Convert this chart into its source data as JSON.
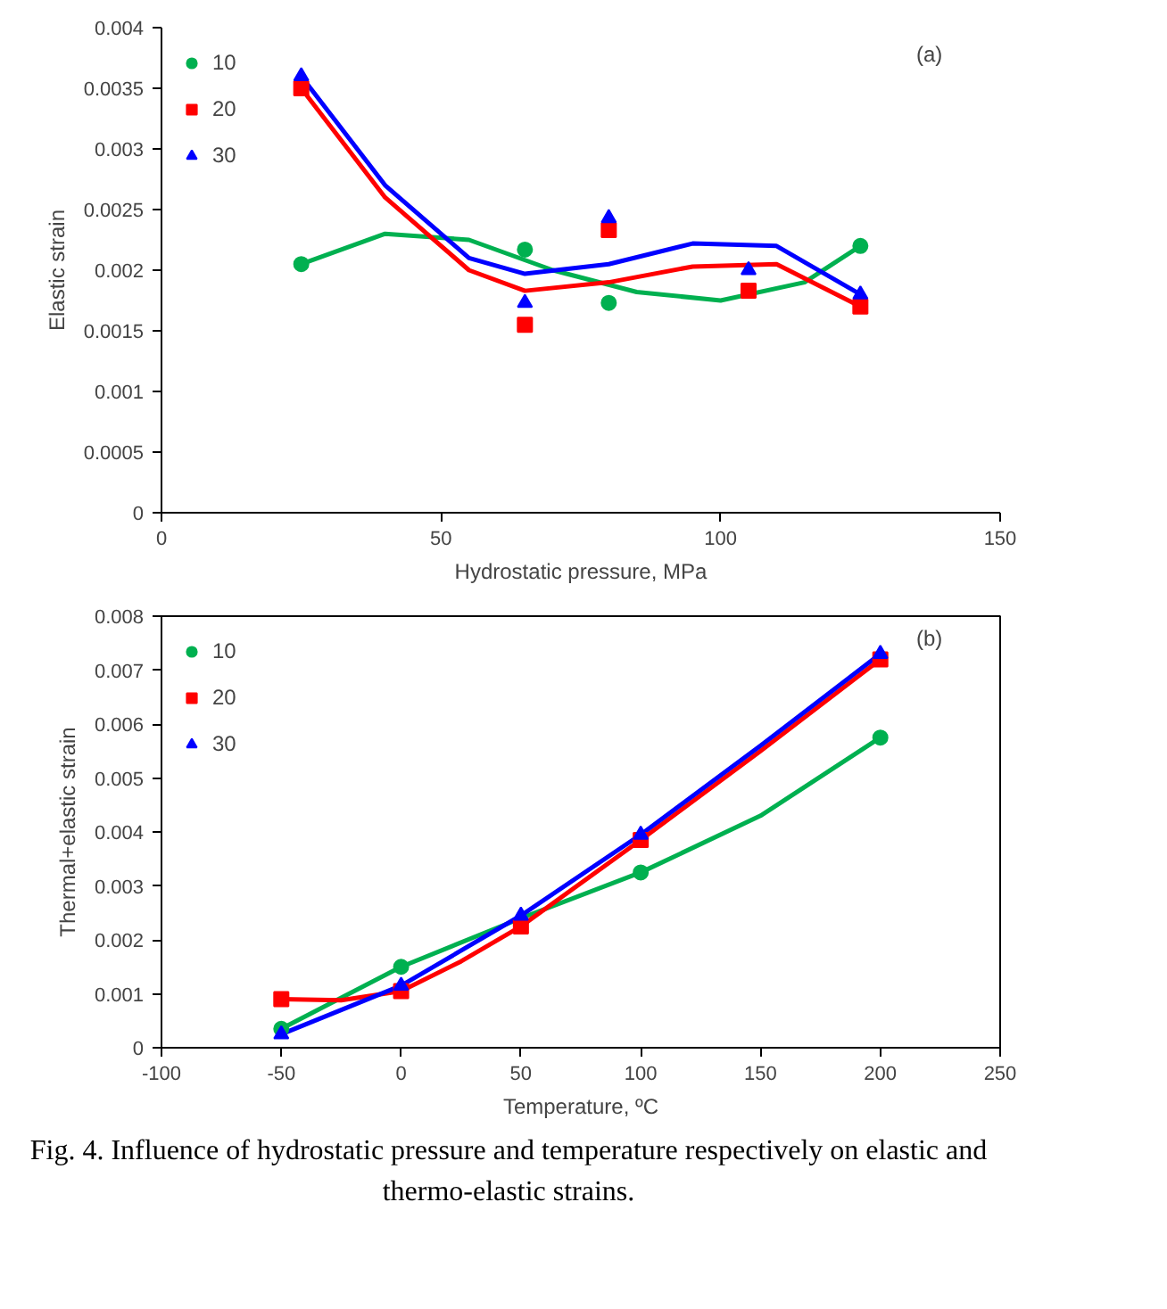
{
  "chart_data": [
    {
      "type": "scatter",
      "xlabel": "Hydrostatic pressure, MPa",
      "ylabel": "Elastic strain",
      "annotations": [
        "(a)"
      ],
      "xlim": [
        0,
        150
      ],
      "xticks": [
        0,
        50,
        100,
        150
      ],
      "ylim": [
        0,
        0.004
      ],
      "yticks": [
        0,
        0.0005,
        0.001,
        0.0015,
        0.002,
        0.0025,
        0.003,
        0.0035,
        0.004
      ],
      "grid": false,
      "legend": "top left",
      "series": [
        {
          "name": "10",
          "color": "#00b050",
          "marker": "circle",
          "x": [
            25,
            65,
            80,
            105,
            125
          ],
          "values": [
            0.00205,
            0.00217,
            0.00173,
            null,
            0.0022
          ]
        },
        {
          "name": "20",
          "color": "#ff0000",
          "marker": "square",
          "x": [
            25,
            65,
            80,
            105,
            125
          ],
          "values": [
            0.0035,
            0.00155,
            0.00233,
            0.00183,
            0.0017
          ]
        },
        {
          "name": "30",
          "color": "#0000ff",
          "marker": "triangle",
          "x": [
            25,
            65,
            80,
            105,
            125
          ],
          "values": [
            0.0036,
            0.00173,
            0.00243,
            0.002,
            0.0018
          ]
        },
        {
          "type": "line",
          "color": "#00b050",
          "marker": "none",
          "x": [
            25,
            40,
            55,
            70,
            85,
            100,
            115,
            125
          ],
          "values": [
            0.00205,
            0.0023,
            0.00225,
            0.002,
            0.00182,
            0.00175,
            0.0019,
            0.0022
          ]
        },
        {
          "type": "line",
          "color": "#ff0000",
          "marker": "none",
          "x": [
            25,
            40,
            55,
            65,
            80,
            95,
            110,
            125
          ],
          "values": [
            0.0035,
            0.0026,
            0.002,
            0.00183,
            0.0019,
            0.00203,
            0.00205,
            0.0017
          ]
        },
        {
          "type": "line",
          "color": "#0000ff",
          "marker": "none",
          "x": [
            25,
            40,
            55,
            65,
            80,
            95,
            110,
            125
          ],
          "values": [
            0.0036,
            0.0027,
            0.0021,
            0.00197,
            0.00205,
            0.00222,
            0.0022,
            0.0018
          ]
        }
      ]
    },
    {
      "type": "scatter",
      "xlabel": "Temperature, ºC",
      "ylabel": "Thermal+elastic strain",
      "annotations": [
        "(b)",
        "Fig. 4. Influence of hydrostatic pressure and temperature respectively on elastic and thermo-elastic strains."
      ],
      "xlim": [
        -100,
        250
      ],
      "xticks": [
        -100,
        -50,
        0,
        50,
        100,
        150,
        200,
        250
      ],
      "ylim": [
        0,
        0.008
      ],
      "yticks": [
        0,
        0.001,
        0.002,
        0.003,
        0.004,
        0.005,
        0.006,
        0.007,
        0.008
      ],
      "grid": false,
      "legend": "top left",
      "series": [
        {
          "name": "10",
          "color": "#00b050",
          "marker": "circle",
          "x": [
            -50,
            0,
            100,
            200
          ],
          "values": [
            0.00035,
            0.0015,
            0.00325,
            0.00575
          ]
        },
        {
          "name": "20",
          "color": "#ff0000",
          "marker": "square",
          "x": [
            -50,
            0,
            50,
            100,
            200
          ],
          "values": [
            0.0009,
            0.00105,
            0.00225,
            0.00385,
            0.0072
          ]
        },
        {
          "name": "30",
          "color": "#0000ff",
          "marker": "triangle",
          "x": [
            -50,
            0,
            50,
            100,
            200
          ],
          "values": [
            0.00025,
            0.00115,
            0.00245,
            0.00395,
            0.0073
          ]
        },
        {
          "type": "line",
          "color": "#00b050",
          "marker": "none",
          "x": [
            -50,
            0,
            50,
            100,
            150,
            200
          ],
          "values": [
            0.00035,
            0.0015,
            0.0024,
            0.00325,
            0.0043,
            0.00575
          ]
        },
        {
          "type": "line",
          "color": "#ff0000",
          "marker": "none",
          "x": [
            -50,
            -25,
            0,
            25,
            50,
            100,
            150,
            200
          ],
          "values": [
            0.0009,
            0.00088,
            0.00105,
            0.0016,
            0.00225,
            0.00385,
            0.0055,
            0.0072
          ]
        },
        {
          "type": "line",
          "color": "#0000ff",
          "marker": "none",
          "x": [
            -50,
            0,
            50,
            100,
            150,
            200
          ],
          "values": [
            0.00025,
            0.00115,
            0.00245,
            0.00395,
            0.0056,
            0.0073
          ]
        }
      ]
    }
  ]
}
